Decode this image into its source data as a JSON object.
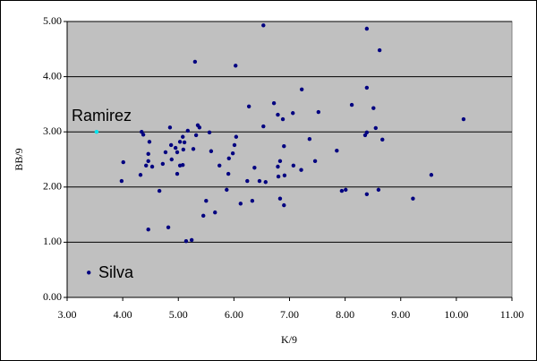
{
  "chart_data": {
    "type": "scatter",
    "xlabel": "K/9",
    "ylabel": "BB/9",
    "annotations": [
      "Ramirez",
      "Silva"
    ],
    "xlim": [
      3,
      11
    ],
    "ylim": [
      0,
      5
    ],
    "xticks": [
      {
        "value": 3,
        "label": "3.00"
      },
      {
        "value": 4,
        "label": "4.00"
      },
      {
        "value": 5,
        "label": "5.00"
      },
      {
        "value": 6,
        "label": "6.00"
      },
      {
        "value": 7,
        "label": "7.00"
      },
      {
        "value": 8,
        "label": "8.00"
      },
      {
        "value": 9,
        "label": "9.00"
      },
      {
        "value": 10,
        "label": "10.00"
      },
      {
        "value": 11,
        "label": "11.00"
      }
    ],
    "yticks": [
      {
        "value": 0,
        "label": "0.00"
      },
      {
        "value": 1,
        "label": "1.00"
      },
      {
        "value": 2,
        "label": "2.00"
      },
      {
        "value": 3,
        "label": "3.00"
      },
      {
        "value": 4,
        "label": "4.00"
      },
      {
        "value": 5,
        "label": "5.00"
      }
    ],
    "grid": true,
    "background": "#c0c0c0",
    "series": [
      {
        "color": "#000080",
        "x": [
          3.39,
          6.53,
          8.39,
          8.62,
          5.3,
          6.03,
          8.39,
          7.22,
          6.72,
          6.27,
          8.12,
          8.51,
          7.52,
          6.79,
          7.06,
          6.88,
          10.13,
          5.35,
          4.85,
          5.38,
          6.53,
          8.55,
          4.34,
          5.17,
          5.56,
          8.39,
          4.37,
          8.36,
          5.32,
          5.08,
          6.04,
          8.67,
          7.36,
          4.48,
          5.03,
          5.11,
          4.87,
          6.01,
          6.9,
          4.95,
          5.09,
          5.27,
          4.98,
          4.77,
          5.59,
          7.85,
          4.46,
          5.98,
          5.91,
          4.88,
          4.46,
          6.83,
          7.46,
          4.01,
          4.72,
          5.08,
          4.42,
          5.03,
          5.74,
          4.53,
          7.07,
          6.37,
          6.79,
          7.21,
          4.32,
          4.98,
          5.9,
          9.55,
          6.8,
          6.91,
          6.46,
          6.24,
          3.98,
          6.57,
          8.01,
          7.94,
          5.87,
          8.6,
          4.66,
          8.39,
          6.83,
          9.22,
          5.5,
          6.33,
          6.12,
          6.9,
          5.66,
          5.45,
          4.46,
          4.82,
          5.24,
          5.14
        ],
        "values": [
          0.45,
          4.93,
          4.87,
          4.48,
          4.27,
          4.2,
          3.8,
          3.77,
          3.52,
          3.46,
          3.49,
          3.43,
          3.36,
          3.31,
          3.34,
          3.23,
          3.23,
          3.12,
          3.08,
          3.08,
          3.1,
          3.07,
          3.0,
          3.02,
          2.99,
          2.99,
          2.95,
          2.94,
          2.94,
          2.91,
          2.91,
          2.86,
          2.87,
          2.82,
          2.82,
          2.81,
          2.76,
          2.76,
          2.74,
          2.71,
          2.68,
          2.69,
          2.63,
          2.63,
          2.65,
          2.66,
          2.6,
          2.61,
          2.52,
          2.5,
          2.47,
          2.47,
          2.47,
          2.45,
          2.42,
          2.4,
          2.39,
          2.39,
          2.39,
          2.37,
          2.39,
          2.35,
          2.37,
          2.31,
          2.22,
          2.24,
          2.24,
          2.22,
          2.19,
          2.21,
          2.11,
          2.11,
          2.11,
          2.09,
          1.95,
          1.93,
          1.95,
          1.95,
          1.93,
          1.87,
          1.79,
          1.79,
          1.75,
          1.75,
          1.7,
          1.67,
          1.54,
          1.48,
          1.23,
          1.27,
          1.04,
          1.02
        ]
      },
      {
        "color": "#00e5ee",
        "x": [
          3.53
        ],
        "values": [
          3.0
        ]
      }
    ]
  }
}
